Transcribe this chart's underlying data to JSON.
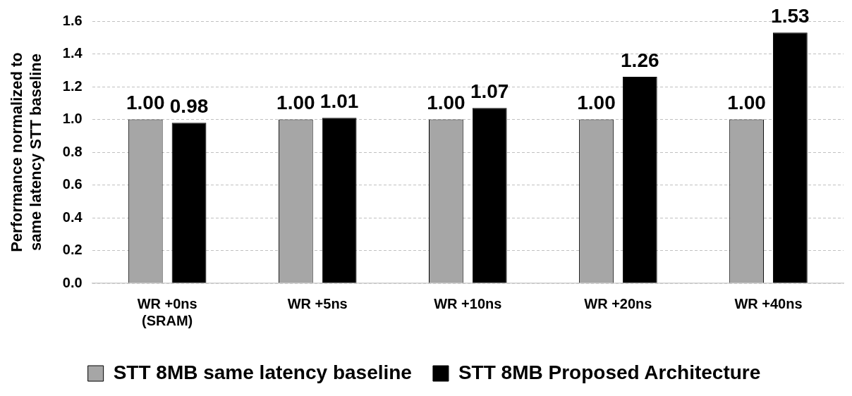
{
  "chart_data": {
    "type": "bar",
    "ylabel": "Performance normalized to\nsame latency STT baseline",
    "categories": [
      "WR +0ns\n(SRAM)",
      "WR +5ns",
      "WR +10ns",
      "WR +20ns",
      "WR +40ns"
    ],
    "series": [
      {
        "name": "STT 8MB same latency baseline",
        "color": "#a6a6a6",
        "values": [
          1.0,
          1.0,
          1.0,
          1.0,
          1.0
        ],
        "value_labels": [
          "1.00",
          "1.00",
          "1.00",
          "1.00",
          "1.00"
        ]
      },
      {
        "name": "STT 8MB Proposed Architecture",
        "color": "#000000",
        "values": [
          0.98,
          1.01,
          1.07,
          1.26,
          1.53
        ],
        "value_labels": [
          "0.98",
          "1.01",
          "1.07",
          "1.26",
          "1.53"
        ]
      }
    ],
    "ylim": [
      0,
      1.6
    ],
    "yticks": [
      {
        "value": 0,
        "label": "0.0"
      },
      0.2,
      0.4,
      0.6,
      0.8,
      {
        "value": 1,
        "label": "1.0"
      },
      1.2,
      1.4,
      1.6
    ],
    "grid": "y",
    "legend": "bottom"
  }
}
